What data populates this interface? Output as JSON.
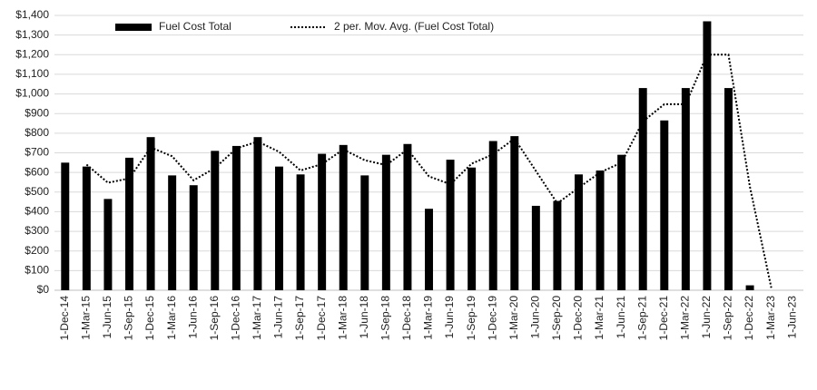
{
  "chart_data": {
    "type": "bar",
    "categories": [
      "1-Dec-14",
      "1-Mar-15",
      "1-Jun-15",
      "1-Sep-15",
      "1-Dec-15",
      "1-Mar-16",
      "1-Jun-16",
      "1-Sep-16",
      "1-Dec-16",
      "1-Mar-17",
      "1-Jun-17",
      "1-Sep-17",
      "1-Dec-17",
      "1-Mar-18",
      "1-Jun-18",
      "1-Sep-18",
      "1-Dec-18",
      "1-Mar-19",
      "1-Jun-19",
      "1-Sep-19",
      "1-Dec-19",
      "1-Mar-20",
      "1-Jun-20",
      "1-Sep-20",
      "1-Dec-20",
      "1-Mar-21",
      "1-Jun-21",
      "1-Sep-21",
      "1-Dec-21",
      "1-Mar-22",
      "1-Jun-22",
      "1-Sep-22",
      "1-Dec-22",
      "1-Mar-23",
      "1-Jun-23"
    ],
    "series": [
      {
        "name": "Fuel Cost Total",
        "type": "bar",
        "color": "#000000",
        "values": [
          650,
          630,
          465,
          675,
          780,
          585,
          535,
          710,
          735,
          780,
          630,
          590,
          695,
          740,
          585,
          690,
          745,
          415,
          665,
          625,
          760,
          785,
          430,
          455,
          590,
          610,
          690,
          1030,
          865,
          1030,
          1370,
          1030,
          25,
          0,
          null
        ]
      },
      {
        "name": "2 per. Mov. Avg. (Fuel Cost Total)",
        "type": "line",
        "color": "#000000",
        "dash": true,
        "values": [
          null,
          640,
          547.5,
          570,
          727.5,
          682.5,
          560,
          622.5,
          722.5,
          757.5,
          705,
          610,
          642.5,
          717.5,
          662.5,
          637.5,
          717.5,
          580,
          540,
          645,
          692.5,
          772.5,
          607.5,
          442.5,
          522.5,
          600,
          650,
          860,
          947.5,
          947.5,
          1200,
          1200,
          527.5,
          12.5,
          null
        ]
      }
    ],
    "ylim": [
      0,
      1400
    ],
    "yticks": [
      {
        "value": 0,
        "label": "$0"
      },
      {
        "value": 100,
        "label": "$100"
      },
      {
        "value": 200,
        "label": "$200"
      },
      {
        "value": 300,
        "label": "$300"
      },
      {
        "value": 400,
        "label": "$400"
      },
      {
        "value": 500,
        "label": "$500"
      },
      {
        "value": 600,
        "label": "$600"
      },
      {
        "value": 700,
        "label": "$700"
      },
      {
        "value": 800,
        "label": "$800"
      },
      {
        "value": 900,
        "label": "$900"
      },
      {
        "value": 1000,
        "label": "$1,000"
      },
      {
        "value": 1100,
        "label": "$1,100"
      },
      {
        "value": 1200,
        "label": "$1,200"
      },
      {
        "value": 1300,
        "label": "$1,300"
      },
      {
        "value": 1400,
        "label": "$1,400"
      }
    ],
    "grid": true
  }
}
